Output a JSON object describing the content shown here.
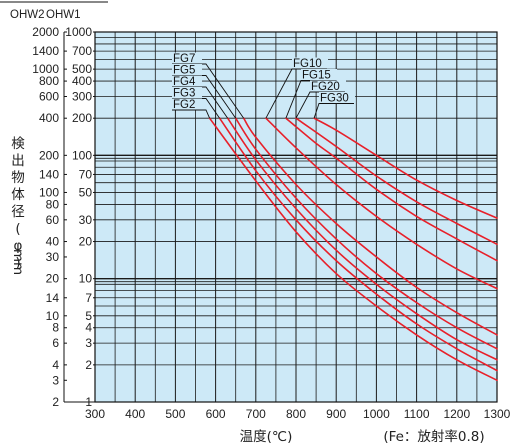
{
  "chart_data": {
    "type": "line",
    "x_axis": {
      "label": "温度(℃)",
      "range": [
        300,
        1300
      ],
      "ticks": [
        300,
        400,
        500,
        600,
        700,
        800,
        900,
        1000,
        1100,
        1200,
        1300
      ],
      "tick_labels": [
        "300",
        "400",
        "500",
        "600",
        "700",
        "800",
        "900",
        "1000",
        "1100",
        "1200",
        "1300"
      ]
    },
    "y_axis": {
      "label": "検出物体径(φ)",
      "unit": "mm",
      "scale": "log",
      "range": [
        1,
        1000
      ]
    },
    "y_axis_ohw1": {
      "header": "OHW1",
      "tick_values": [
        1,
        2,
        3,
        4,
        5,
        7,
        10,
        20,
        30,
        50,
        70,
        100,
        200,
        300,
        400,
        500,
        700,
        1000
      ],
      "tick_labels": [
        "1",
        "2",
        "3",
        "4",
        "5",
        "7",
        "10",
        "20",
        "30",
        "50",
        "70",
        "100",
        "200",
        "300",
        "400",
        "500",
        "700",
        "1000"
      ]
    },
    "y_axis_ohw2": {
      "header": "OHW2",
      "tick_values": [
        2,
        3,
        4,
        6,
        8,
        10,
        14,
        20,
        30,
        40,
        60,
        80,
        100,
        140,
        200,
        400,
        600,
        800,
        1000,
        1400,
        2000
      ],
      "tick_labels": [
        "2",
        "3",
        "4",
        "6",
        "8",
        "10",
        "14",
        "20",
        "30",
        "40",
        "60",
        "80",
        "100",
        "140",
        "200",
        "400",
        "600",
        "800",
        "1000",
        "1400",
        "2000"
      ]
    },
    "note": "(Fe：放射率0.8)",
    "grid": true,
    "series": [
      {
        "name": "FG2",
        "color": "#e8202a",
        "points": [
          [
            585,
            200
          ],
          [
            700,
            62
          ],
          [
            800,
            24
          ],
          [
            900,
            11
          ],
          [
            1000,
            6
          ],
          [
            1100,
            3.5
          ],
          [
            1200,
            2.2
          ],
          [
            1300,
            1.5
          ]
        ]
      },
      {
        "name": "FG3",
        "color": "#e8202a",
        "points": [
          [
            610,
            200
          ],
          [
            700,
            75
          ],
          [
            800,
            30
          ],
          [
            900,
            14
          ],
          [
            1000,
            7.5
          ],
          [
            1100,
            4.3
          ],
          [
            1200,
            2.7
          ],
          [
            1300,
            1.8
          ]
        ]
      },
      {
        "name": "FG4",
        "color": "#e8202a",
        "points": [
          [
            630,
            200
          ],
          [
            700,
            92
          ],
          [
            800,
            37
          ],
          [
            900,
            17
          ],
          [
            1000,
            9
          ],
          [
            1100,
            5.2
          ],
          [
            1200,
            3.2
          ],
          [
            1300,
            2.2
          ]
        ]
      },
      {
        "name": "FG5",
        "color": "#e8202a",
        "points": [
          [
            650,
            200
          ],
          [
            700,
            112
          ],
          [
            800,
            45
          ],
          [
            900,
            21
          ],
          [
            1000,
            11
          ],
          [
            1100,
            6.4
          ],
          [
            1200,
            4
          ],
          [
            1300,
            2.7
          ]
        ]
      },
      {
        "name": "FG7",
        "color": "#e8202a",
        "points": [
          [
            670,
            200
          ],
          [
            700,
            140
          ],
          [
            800,
            58
          ],
          [
            900,
            28
          ],
          [
            1000,
            15
          ],
          [
            1100,
            8.5
          ],
          [
            1200,
            5.3
          ],
          [
            1300,
            3.5
          ]
        ]
      },
      {
        "name": "FG10",
        "color": "#e8202a",
        "points": [
          [
            725,
            200
          ],
          [
            800,
            115
          ],
          [
            900,
            58
          ],
          [
            1000,
            32
          ],
          [
            1100,
            19
          ],
          [
            1200,
            12
          ],
          [
            1300,
            8.3
          ]
        ]
      },
      {
        "name": "FG15",
        "color": "#e8202a",
        "points": [
          [
            775,
            200
          ],
          [
            850,
            125
          ],
          [
            900,
            95
          ],
          [
            1000,
            53
          ],
          [
            1100,
            32
          ],
          [
            1200,
            21
          ],
          [
            1300,
            14
          ]
        ]
      },
      {
        "name": "FG20",
        "color": "#e8202a",
        "points": [
          [
            800,
            200
          ],
          [
            900,
            118
          ],
          [
            1000,
            68
          ],
          [
            1100,
            42
          ],
          [
            1200,
            28
          ],
          [
            1300,
            19
          ]
        ]
      },
      {
        "name": "FG30",
        "color": "#e8202a",
        "points": [
          [
            845,
            200
          ],
          [
            900,
            160
          ],
          [
            1000,
            100
          ],
          [
            1100,
            63
          ],
          [
            1200,
            43
          ],
          [
            1300,
            31
          ]
        ]
      }
    ],
    "label_groups": [
      {
        "names": [
          "FG7",
          "FG5",
          "FG4",
          "FG3",
          "FG2"
        ],
        "align": "left"
      },
      {
        "names": [
          "FG10",
          "FG15",
          "FG20",
          "FG30"
        ],
        "align": "stair"
      }
    ]
  }
}
